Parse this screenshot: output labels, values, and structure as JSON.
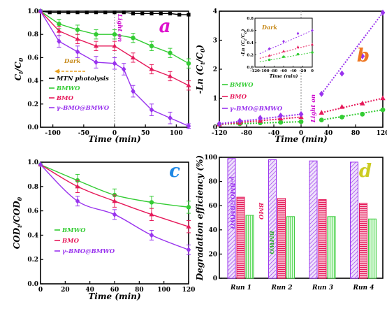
{
  "chart_data": [
    {
      "id": "a",
      "type": "line",
      "panel_label": "a",
      "xlabel": "Time (min)",
      "ylabel": "C_t/C_0",
      "xlim": [
        -120,
        120
      ],
      "ylim": [
        0,
        1.0
      ],
      "xticks": [
        -100,
        -50,
        0,
        50,
        100
      ],
      "yticks": [
        0.0,
        0.2,
        0.4,
        0.6,
        0.8,
        1.0
      ],
      "annotations": {
        "dark": "Dark",
        "light": "Light on"
      },
      "series": [
        {
          "name": "MTN photolysis",
          "color": "#000000",
          "marker": "square",
          "x": [
            -120,
            -105,
            -90,
            -75,
            -60,
            -45,
            -30,
            -15,
            0,
            15,
            30,
            45,
            60,
            75,
            90,
            105,
            120
          ],
          "y": [
            1.0,
            0.99,
            0.99,
            0.99,
            0.99,
            0.99,
            0.99,
            0.99,
            0.99,
            0.99,
            0.98,
            0.98,
            0.98,
            0.98,
            0.98,
            0.97,
            0.97
          ],
          "err": []
        },
        {
          "name": "BMWO",
          "color": "#33cc33",
          "marker": "circle",
          "x": [
            -120,
            -90,
            -60,
            -30,
            0,
            30,
            60,
            90,
            120
          ],
          "y": [
            1.0,
            0.89,
            0.84,
            0.8,
            0.8,
            0.77,
            0.7,
            0.64,
            0.55
          ],
          "err": [
            0,
            0.04,
            0.04,
            0.04,
            0.04,
            0.04,
            0.04,
            0.04,
            0.04
          ]
        },
        {
          "name": "BMO",
          "color": "#e6195a",
          "marker": "triangle",
          "x": [
            -120,
            -90,
            -60,
            -30,
            0,
            30,
            60,
            90,
            120
          ],
          "y": [
            1.0,
            0.83,
            0.76,
            0.7,
            0.7,
            0.6,
            0.5,
            0.44,
            0.36
          ],
          "err": [
            0,
            0.04,
            0.04,
            0.04,
            0.04,
            0.04,
            0.04,
            0.04,
            0.04
          ]
        },
        {
          "name": "γ-BMO@BMWO",
          "color": "#9933ee",
          "marker": "diamond",
          "x": [
            -120,
            -90,
            -60,
            -30,
            0,
            15,
            30,
            60,
            90,
            120
          ],
          "y": [
            1.0,
            0.74,
            0.65,
            0.56,
            0.55,
            0.5,
            0.31,
            0.15,
            0.08,
            0.01
          ],
          "err": [
            0,
            0.05,
            0.05,
            0.05,
            0.05,
            0.05,
            0.05,
            0.05,
            0.05,
            0.02
          ]
        }
      ]
    },
    {
      "id": "b",
      "type": "scatter",
      "panel_label": "b",
      "xlabel": "Time (min)",
      "ylabel": "-Ln (C_t/C_0)",
      "xlim": [
        -120,
        120
      ],
      "ylim": [
        0,
        4
      ],
      "xticks": [
        -120,
        -80,
        -40,
        0,
        40,
        80,
        120
      ],
      "yticks": [
        0,
        1,
        2,
        3,
        4
      ],
      "annotations": {
        "light": "Light on"
      },
      "series": [
        {
          "name": "BMWO",
          "color": "#33cc33",
          "marker": "circle",
          "x": [
            -120,
            -90,
            -60,
            -30,
            0,
            30,
            60,
            90,
            120
          ],
          "y": [
            0.1,
            0.12,
            0.15,
            0.17,
            0.19,
            0.25,
            0.35,
            0.45,
            0.6
          ]
        },
        {
          "name": "BMO",
          "color": "#e6195a",
          "marker": "triangle",
          "x": [
            -120,
            -90,
            -60,
            -30,
            0,
            30,
            60,
            90,
            120
          ],
          "y": [
            0.1,
            0.15,
            0.22,
            0.3,
            0.35,
            0.5,
            0.7,
            0.82,
            1.0
          ]
        },
        {
          "name": "γ-BMO@BMWO",
          "color": "#9933ee",
          "marker": "diamond",
          "x": [
            -120,
            -90,
            -60,
            -30,
            0,
            30,
            60,
            90,
            120
          ],
          "y": [
            0.12,
            0.22,
            0.32,
            0.4,
            0.45,
            1.15,
            1.85,
            2.45,
            3.95
          ]
        }
      ],
      "inset": {
        "title": "Dark",
        "xlabel": "Time (min)",
        "ylabel": "-Ln (C_t/C_0)",
        "xlim": [
          -120,
          0
        ],
        "ylim": [
          0,
          0.8
        ],
        "xticks": [
          -120,
          -100,
          -80,
          -60,
          -40,
          -20,
          0
        ],
        "yticks": [
          0.0,
          0.2,
          0.4,
          0.6,
          0.8
        ],
        "series": [
          {
            "color": "#33cc33",
            "marker": "circle",
            "x": [
              -90,
              -60,
              -30,
              0
            ],
            "y": [
              0.12,
              0.17,
              0.21,
              0.24
            ]
          },
          {
            "color": "#e6195a",
            "marker": "triangle",
            "x": [
              -90,
              -60,
              -30,
              0
            ],
            "y": [
              0.19,
              0.26,
              0.33,
              0.37
            ]
          },
          {
            "color": "#9933ee",
            "marker": "diamond",
            "x": [
              -90,
              -60,
              -30,
              0
            ],
            "y": [
              0.3,
              0.42,
              0.55,
              0.6
            ]
          }
        ]
      }
    },
    {
      "id": "c",
      "type": "line",
      "panel_label": "c",
      "xlabel": "Time (min)",
      "ylabel": "COD_t/COD_0",
      "xlim": [
        0,
        120
      ],
      "ylim": [
        0,
        1.0
      ],
      "xticks": [
        0,
        20,
        40,
        60,
        80,
        100,
        120
      ],
      "yticks": [
        0.0,
        0.2,
        0.4,
        0.6,
        0.8,
        1.0
      ],
      "series": [
        {
          "name": "BMWO",
          "color": "#33cc33",
          "marker": "circle",
          "x": [
            0,
            30,
            60,
            90,
            120
          ],
          "y": [
            0.98,
            0.85,
            0.73,
            0.67,
            0.63
          ],
          "err": [
            0,
            0.05,
            0.05,
            0.05,
            0.05
          ]
        },
        {
          "name": "BMO",
          "color": "#e6195a",
          "marker": "triangle",
          "x": [
            0,
            30,
            60,
            90,
            120
          ],
          "y": [
            0.98,
            0.8,
            0.68,
            0.57,
            0.47
          ],
          "err": [
            0,
            0.05,
            0.05,
            0.05,
            0.05
          ]
        },
        {
          "name": "γ-BMO@BMWO",
          "color": "#9933ee",
          "marker": "diamond",
          "x": [
            0,
            30,
            60,
            90,
            120
          ],
          "y": [
            0.98,
            0.68,
            0.57,
            0.4,
            0.28
          ],
          "err": [
            0,
            0.04,
            0.04,
            0.04,
            0.04
          ]
        }
      ]
    },
    {
      "id": "d",
      "type": "bar",
      "panel_label": "d",
      "ylabel": "Degradation efficiency (%)",
      "ylim": [
        0,
        100
      ],
      "yticks": [
        0,
        20,
        40,
        60,
        80,
        100
      ],
      "categories": [
        "Run 1",
        "Run 2",
        "Run 3",
        "Run 4"
      ],
      "bar_labels": [
        "γ-BMO@BMWO",
        "BMO",
        "BMWO"
      ],
      "series": [
        {
          "name": "γ-BMO@BMWO",
          "color": "#bb88ee",
          "values": [
            99,
            98,
            97,
            96
          ]
        },
        {
          "name": "BMO",
          "color": "#ee4477",
          "values": [
            67,
            66,
            65,
            62
          ]
        },
        {
          "name": "BMWO",
          "color": "#88ee88",
          "values": [
            52,
            51,
            51,
            49
          ]
        }
      ]
    }
  ]
}
